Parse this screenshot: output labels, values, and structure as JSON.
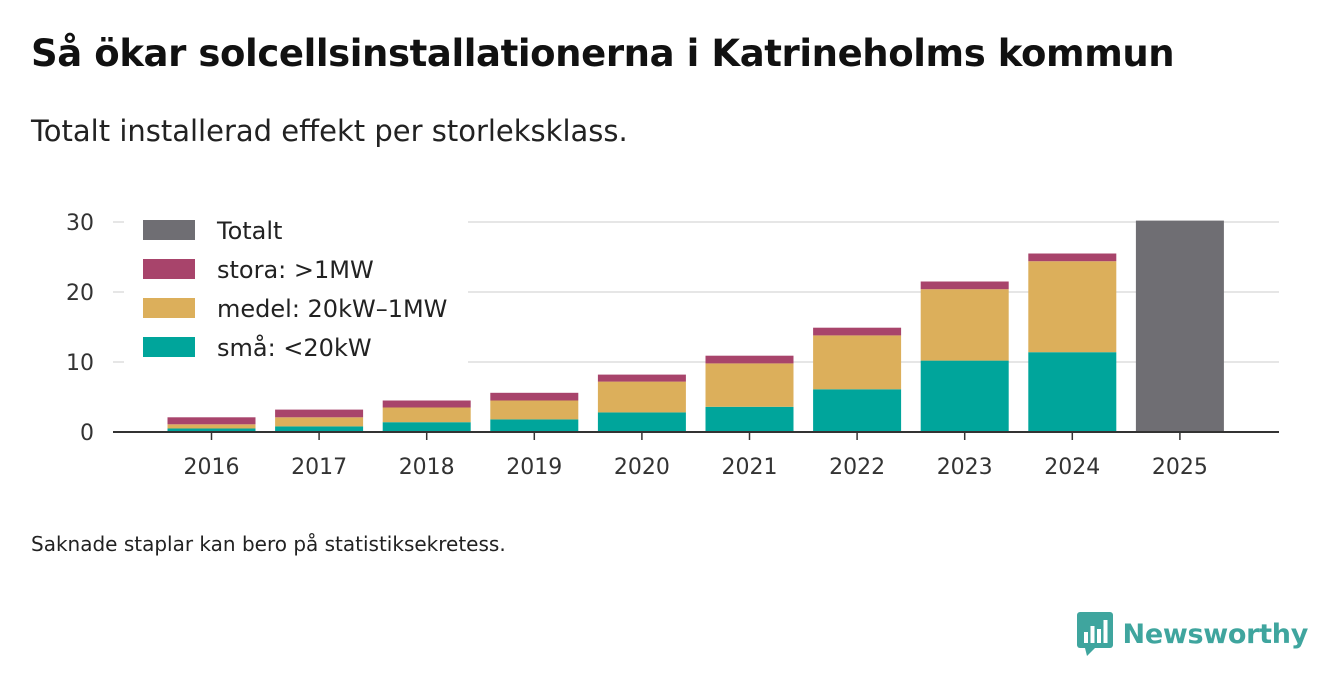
{
  "title": "Så ökar solcellsinstallationerna i Katrineholms kommun",
  "subtitle": "Totalt installerad effekt per storleksklass.",
  "note": "Saknade staplar kan bero på statistiksekretess.",
  "brand": {
    "name": "Newsworthy",
    "logo_icon": "newsworthy-bar-chart-speech-bubble-icon"
  },
  "colors": {
    "totalt": "#6f6e73",
    "stora": "#a8446b",
    "medel": "#dcaf5b",
    "sma": "#00a59b",
    "grid": "#dddddd",
    "axis": "#333333",
    "brand": "#3fa59e"
  },
  "chart_data": {
    "type": "bar",
    "stacked": true,
    "title": "Så ökar solcellsinstallationerna i Katrineholms kommun",
    "subtitle": "Totalt installerad effekt per storleksklass.",
    "xlabel": "",
    "ylabel": "",
    "categories": [
      "2016",
      "2017",
      "2018",
      "2019",
      "2020",
      "2021",
      "2022",
      "2023",
      "2024",
      "2025"
    ],
    "ylim": [
      0,
      30
    ],
    "yticks": [
      0,
      10,
      20,
      30
    ],
    "grid": true,
    "legend_position": "top-left",
    "legend": [
      {
        "key": "totalt",
        "label": "Totalt"
      },
      {
        "key": "stora",
        "label": "stora: >1MW"
      },
      {
        "key": "medel",
        "label": "medel: 20kW–1MW"
      },
      {
        "key": "sma",
        "label": "små: <20kW"
      }
    ],
    "series": [
      {
        "key": "sma",
        "name": "små: <20kW",
        "values": [
          0.5,
          0.8,
          1.4,
          1.8,
          2.8,
          3.6,
          6.1,
          10.2,
          11.4,
          null
        ]
      },
      {
        "key": "medel",
        "name": "medel: 20kW–1MW",
        "values": [
          0.6,
          1.3,
          2.1,
          2.7,
          4.4,
          6.2,
          7.7,
          10.2,
          13.0,
          null
        ]
      },
      {
        "key": "stora",
        "name": "stora: >1MW",
        "values": [
          1.0,
          1.1,
          1.0,
          1.1,
          1.0,
          1.1,
          1.1,
          1.1,
          1.1,
          null
        ]
      },
      {
        "key": "totalt",
        "name": "Totalt",
        "values": [
          null,
          null,
          null,
          null,
          null,
          null,
          null,
          null,
          null,
          30.2
        ]
      }
    ]
  }
}
